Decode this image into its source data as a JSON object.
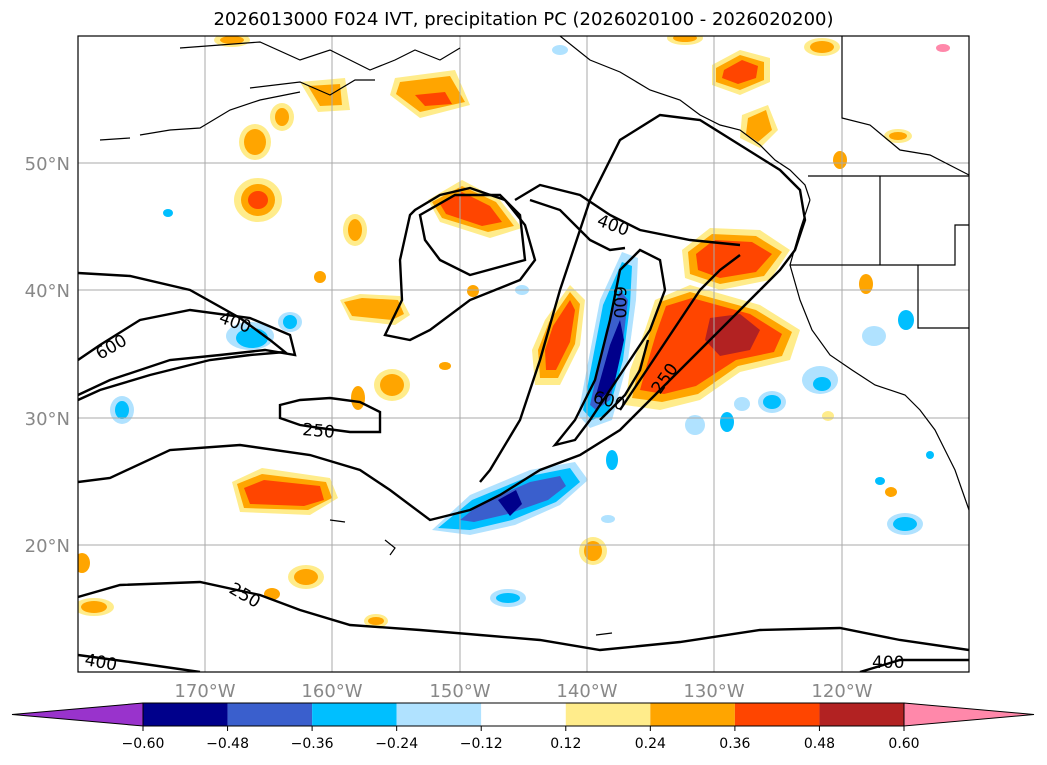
{
  "title": "2026013000 F024 IVT, precipitation PC (2026020100 - 2026020200)",
  "map": {
    "lat_labels": [
      "50°N",
      "40°N",
      "30°N",
      "20°N"
    ],
    "lon_labels": [
      "170°W",
      "160°W",
      "150°W",
      "140°W",
      "130°W",
      "120°W"
    ],
    "lon_range": [
      -180,
      -110
    ],
    "lat_range": [
      10,
      60
    ],
    "gridlines": true,
    "contour_labels": [
      "400",
      "600",
      "400",
      "250",
      "600",
      "600",
      "250",
      "250",
      "400",
      "400"
    ]
  },
  "colorbar": {
    "orientation": "horizontal",
    "extend": "both",
    "tick_labels": [
      "−0.60",
      "−0.48",
      "−0.36",
      "−0.24",
      "−0.12",
      "0.12",
      "0.24",
      "0.36",
      "0.48",
      "0.60"
    ],
    "colors": [
      "#9933cc",
      "#00008b",
      "#3a5fcd",
      "#00bfff",
      "#b0e2ff",
      "#ffffff",
      "#ffec8b",
      "#ffa500",
      "#ff4500",
      "#b22222",
      "#ff88aa"
    ]
  },
  "chart_data": {
    "type": "heatmap",
    "title": "2026013000 F024 IVT, precipitation PC (2026020100 - 2026020200)",
    "x_ticks": [
      "170°W",
      "160°W",
      "150°W",
      "140°W",
      "130°W",
      "120°W"
    ],
    "y_ticks": [
      "50°N",
      "40°N",
      "30°N",
      "20°N"
    ],
    "xlim": [
      -180,
      -110
    ],
    "ylim": [
      10,
      60
    ],
    "fill_levels": [
      -0.6,
      -0.48,
      -0.36,
      -0.24,
      -0.12,
      0.12,
      0.24,
      0.36,
      0.48,
      0.6
    ],
    "contour_levels": [
      250,
      400,
      600
    ],
    "grid": true,
    "legend": "colorbar-bottom"
  }
}
